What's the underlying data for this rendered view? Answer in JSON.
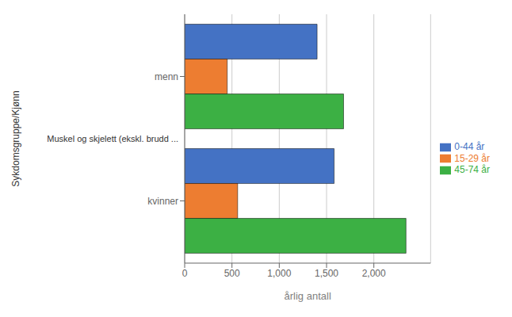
{
  "chart_data": {
    "type": "bar",
    "orientation": "horizontal",
    "categories": [
      "menn",
      "kvinner"
    ],
    "series": [
      {
        "name": "0-44 år",
        "color": "#4472C4",
        "values": [
          1400,
          1580
        ]
      },
      {
        "name": "15-29 år",
        "color": "#ED7D31",
        "values": [
          450,
          560
        ]
      },
      {
        "name": "45-74 år",
        "color": "#3CB044",
        "values": [
          1680,
          2340
        ]
      }
    ],
    "xlabel": "årlig antall",
    "ylabel": "Sykdomsgruppe/Kjønn",
    "annotations": [
      "Muskel og skjelett (ekskl. brudd ..."
    ],
    "xlim": [
      0,
      2600
    ],
    "xticks": [
      0,
      500,
      {
        "value": 1000,
        "label": "1,000"
      },
      {
        "value": 1500,
        "label": "1,500"
      },
      {
        "value": 2000,
        "label": "2,000"
      }
    ],
    "grid": true,
    "legend": "right"
  }
}
